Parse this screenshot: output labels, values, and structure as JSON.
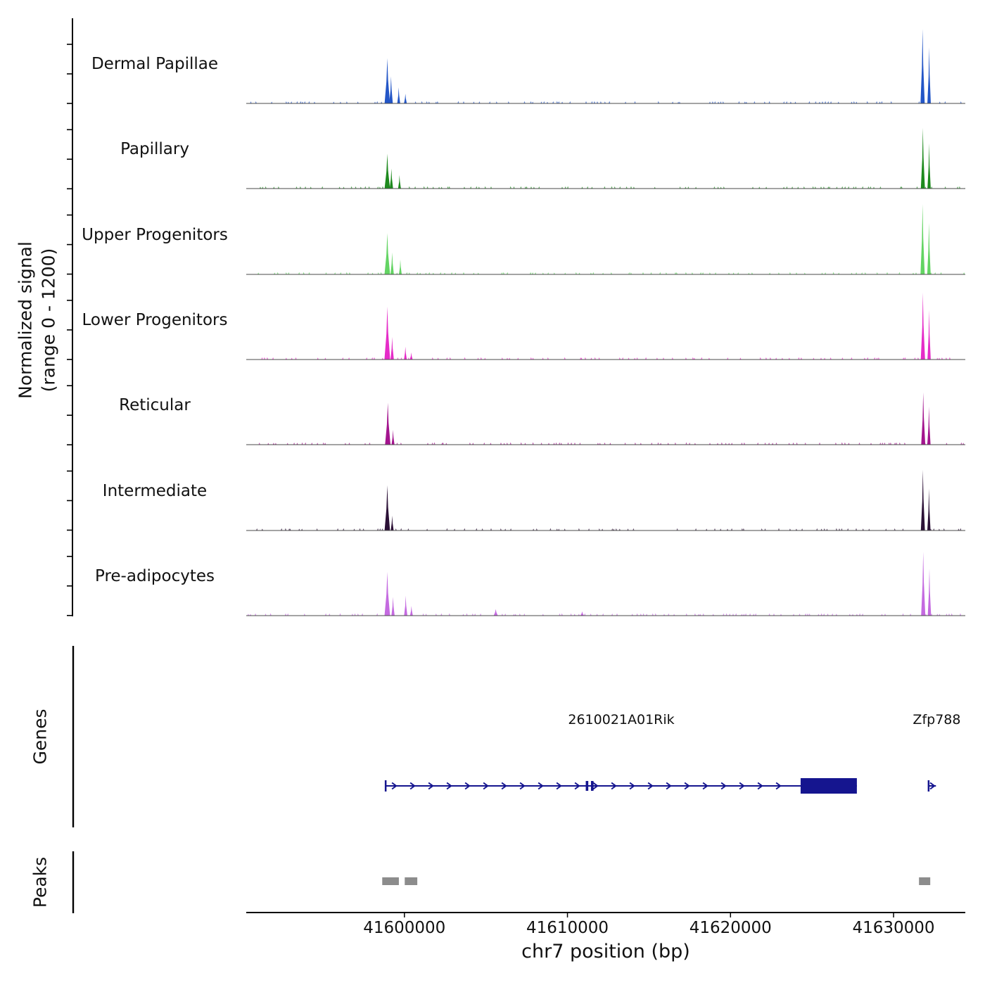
{
  "sections": {
    "signal_label_line1": "Normalized signal",
    "signal_label_line2": "(range 0 - 1200)",
    "genes": "Genes",
    "peaks": "Peaks"
  },
  "chart_data": {
    "type": "area",
    "title": "",
    "xlabel": "chr7 position (bp)",
    "ylabel": "Normalized signal (range 0 - 1200)",
    "x_range": [
      41590300,
      41634400
    ],
    "x_ticks": [
      41600000,
      41610000,
      41620000,
      41630000
    ],
    "y_range_per_track": [
      0,
      1200
    ],
    "gene_color": "#15158f",
    "peak_color": "#8c8c8c",
    "tracks": [
      {
        "name": "Dermal Papillae",
        "color": "#2356c7",
        "peaks": [
          [
            41598950,
            700,
            330
          ],
          [
            41599180,
            420,
            220
          ],
          [
            41599650,
            250,
            180
          ],
          [
            41600060,
            150,
            150
          ],
          [
            41631780,
            1155,
            260
          ],
          [
            41632180,
            870,
            210
          ]
        ]
      },
      {
        "name": "Papillary",
        "color": "#1e8a1e",
        "peaks": [
          [
            41598950,
            540,
            330
          ],
          [
            41599200,
            310,
            210
          ],
          [
            41599700,
            210,
            170
          ],
          [
            41631800,
            940,
            250
          ],
          [
            41632180,
            700,
            200
          ]
        ]
      },
      {
        "name": "Upper Progenitors",
        "color": "#63d463",
        "peaks": [
          [
            41598950,
            640,
            340
          ],
          [
            41599250,
            340,
            210
          ],
          [
            41599750,
            230,
            170
          ],
          [
            41631780,
            1090,
            260
          ],
          [
            41632170,
            800,
            210
          ]
        ]
      },
      {
        "name": "Lower Progenitors",
        "color": "#e52cc8",
        "peaks": [
          [
            41598950,
            820,
            350
          ],
          [
            41599250,
            350,
            210
          ],
          [
            41600060,
            200,
            160
          ],
          [
            41600420,
            110,
            140
          ],
          [
            41631800,
            1040,
            260
          ],
          [
            41632180,
            770,
            200
          ]
        ]
      },
      {
        "name": "Reticular",
        "color": "#a3148e",
        "peaks": [
          [
            41598980,
            650,
            330
          ],
          [
            41599300,
            230,
            180
          ],
          [
            41631820,
            810,
            250
          ],
          [
            41632170,
            590,
            200
          ]
        ]
      },
      {
        "name": "Intermediate",
        "color": "#2b1036",
        "peaks": [
          [
            41598950,
            700,
            330
          ],
          [
            41599250,
            230,
            180
          ],
          [
            41631800,
            940,
            250
          ],
          [
            41632170,
            650,
            200
          ]
        ]
      },
      {
        "name": "Pre-adipocytes",
        "color": "#c46ae0",
        "peaks": [
          [
            41598950,
            680,
            340
          ],
          [
            41599300,
            290,
            200
          ],
          [
            41600080,
            310,
            200
          ],
          [
            41600430,
            150,
            150
          ],
          [
            41605600,
            100,
            260
          ],
          [
            41610900,
            65,
            220
          ],
          [
            41631820,
            990,
            260
          ],
          [
            41632200,
            730,
            210
          ]
        ]
      }
    ],
    "genes": [
      {
        "name": "2610021A01Rik",
        "strand": "+",
        "tx_start": 41598850,
        "tx_end": 41627750,
        "thick_start": 41624300,
        "thick_end": 41627750,
        "tick_exons": [
          41611200,
          41611520
        ],
        "label_bp": 41613300
      },
      {
        "name": "Zfp788",
        "strand": "+",
        "tx_start": 41632150,
        "tx_end": 41632600,
        "thick_start": 41632600,
        "thick_end": 41632600,
        "tick_exons": [],
        "label_bp": 41632650
      }
    ],
    "peak_regions": [
      [
        41598640,
        41599660
      ],
      [
        41600020,
        41600790
      ],
      [
        41631560,
        41632250
      ]
    ]
  }
}
